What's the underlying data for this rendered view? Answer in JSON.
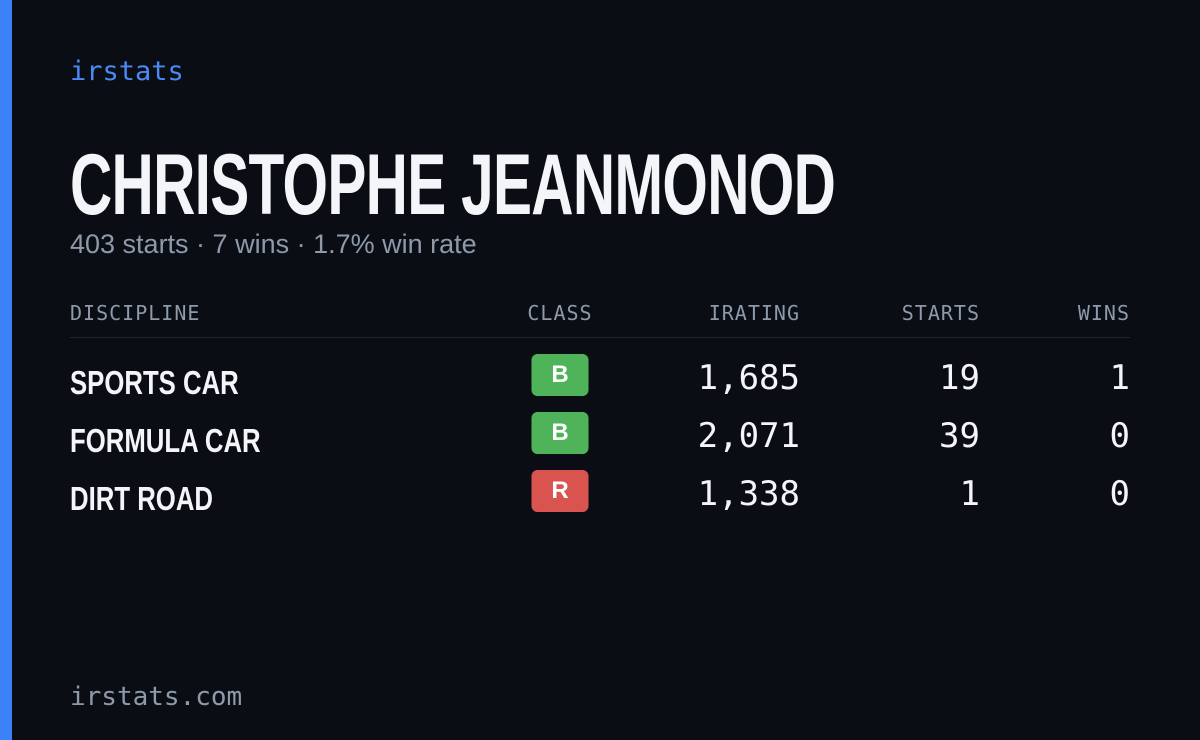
{
  "brand": "irstats",
  "title": "CHRISTOPHE JEANMONOD",
  "subtitle": "403 starts · 7 wins · 1.7% win rate",
  "table": {
    "headers": [
      "DISCIPLINE",
      "CLASS",
      "IRATING",
      "STARTS",
      "WINS"
    ],
    "rows": [
      {
        "discipline": "SPORTS CAR",
        "class": "B",
        "class_color": "#4fb35a",
        "irating": "1,685",
        "starts": "19",
        "wins": "1"
      },
      {
        "discipline": "FORMULA CAR",
        "class": "B",
        "class_color": "#4fb35a",
        "irating": "2,071",
        "starts": "39",
        "wins": "0"
      },
      {
        "discipline": "DIRT ROAD",
        "class": "R",
        "class_color": "#d9534f",
        "irating": "1,338",
        "starts": "1",
        "wins": "0"
      }
    ]
  },
  "footer": "irstats.com"
}
